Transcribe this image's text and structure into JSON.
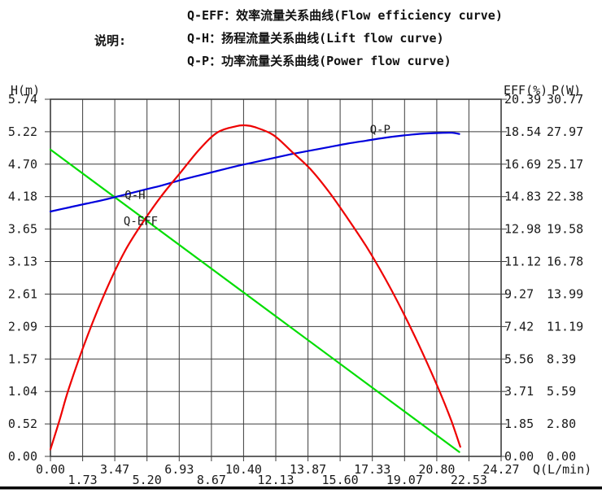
{
  "page": {
    "background": "#ffffff",
    "bottom_rule_color": "#000000"
  },
  "legend": {
    "label": "说明:",
    "items": [
      {
        "key": "Q-EFF",
        "text": "Q-EFF：效率流量关系曲线(Flow efficiency curve)"
      },
      {
        "key": "Q-H",
        "text": "Q-H：扬程流量关系曲线(Lift flow curve)"
      },
      {
        "key": "Q-P",
        "text": "Q-P：功率流量关系曲线(Power flow curve)"
      }
    ]
  },
  "chart_data": {
    "type": "line",
    "title": "",
    "grid": {
      "columns": 14,
      "rows": 11,
      "show": true,
      "color": "#3c3c3c"
    },
    "x_axis": {
      "label": "Q(L/min)",
      "min": 0,
      "max": 24.27,
      "tick_labels": [
        "0.00",
        "1.73",
        "3.47",
        "5.20",
        "6.93",
        "8.67",
        "10.40",
        "12.13",
        "13.87",
        "15.60",
        "17.33",
        "19.07",
        "20.80",
        "22.53",
        "24.27"
      ]
    },
    "y_axis_left": {
      "label": "H(m)",
      "min": 0,
      "max": 5.74,
      "tick_labels": [
        "5.74",
        "5.22",
        "4.70",
        "4.18",
        "3.65",
        "3.13",
        "2.61",
        "2.09",
        "1.57",
        "1.04",
        "0.52",
        "0.00"
      ]
    },
    "y_axis_right_eff": {
      "label": "EFF(%)",
      "min": 0,
      "max": 20.39,
      "tick_labels": [
        "20.39",
        "18.54",
        "16.69",
        "14.83",
        "12.98",
        "11.12",
        "9.27",
        "7.42",
        "5.56",
        "3.71",
        "1.85",
        "0.00"
      ]
    },
    "y_axis_right_p": {
      "label": "P(W)",
      "min": 0,
      "max": 30.77,
      "tick_labels": [
        "30.77",
        "27.97",
        "25.17",
        "22.38",
        "19.58",
        "16.78",
        "13.99",
        "11.19",
        "8.39",
        "5.59",
        "2.80",
        "0.00"
      ]
    },
    "series": [
      {
        "name": "Q-H",
        "axis": "h",
        "color": "#00dd00",
        "curve_label": {
          "text": "Q-H",
          "q": 4.0,
          "v": 4.14
        },
        "points": [
          [
            0,
            4.93
          ],
          [
            22.02,
            0.07
          ]
        ]
      },
      {
        "name": "Q-P",
        "axis": "p",
        "color": "#0000dd",
        "curve_label": {
          "text": "Q-P",
          "q": 17.2,
          "v": 27.82
        },
        "points": [
          [
            0,
            21.1
          ],
          [
            1,
            21.45
          ],
          [
            2,
            21.8
          ],
          [
            3,
            22.15
          ],
          [
            4,
            22.55
          ],
          [
            5,
            22.95
          ],
          [
            6,
            23.35
          ],
          [
            7,
            23.8
          ],
          [
            8,
            24.2
          ],
          [
            9,
            24.6
          ],
          [
            10,
            25.0
          ],
          [
            11,
            25.35
          ],
          [
            12,
            25.7
          ],
          [
            13,
            26.05
          ],
          [
            14,
            26.35
          ],
          [
            15,
            26.65
          ],
          [
            16,
            26.95
          ],
          [
            17,
            27.2
          ],
          [
            18,
            27.45
          ],
          [
            19,
            27.65
          ],
          [
            20,
            27.8
          ],
          [
            21,
            27.87
          ],
          [
            21.6,
            27.88
          ],
          [
            22.02,
            27.78
          ]
        ]
      },
      {
        "name": "Q-EFF",
        "axis": "eff",
        "color": "#ee0000",
        "curve_label": {
          "text": "Q-EFF",
          "q": 3.94,
          "v": 13.22
        },
        "points": [
          [
            0,
            0.4
          ],
          [
            0.5,
            2.1
          ],
          [
            1,
            3.9
          ],
          [
            2,
            6.9
          ],
          [
            3,
            9.5
          ],
          [
            4,
            11.7
          ],
          [
            5,
            13.4
          ],
          [
            6,
            14.9
          ],
          [
            7,
            16.2
          ],
          [
            8,
            17.5
          ],
          [
            9,
            18.5
          ],
          [
            10,
            18.85
          ],
          [
            10.5,
            18.9
          ],
          [
            11,
            18.8
          ],
          [
            12,
            18.35
          ],
          [
            13,
            17.4
          ],
          [
            14,
            16.4
          ],
          [
            15,
            15.1
          ],
          [
            16,
            13.6
          ],
          [
            17,
            12.0
          ],
          [
            18,
            10.2
          ],
          [
            19,
            8.2
          ],
          [
            20,
            6.0
          ],
          [
            21,
            3.6
          ],
          [
            21.6,
            2.0
          ],
          [
            22.07,
            0.55
          ]
        ]
      }
    ]
  }
}
